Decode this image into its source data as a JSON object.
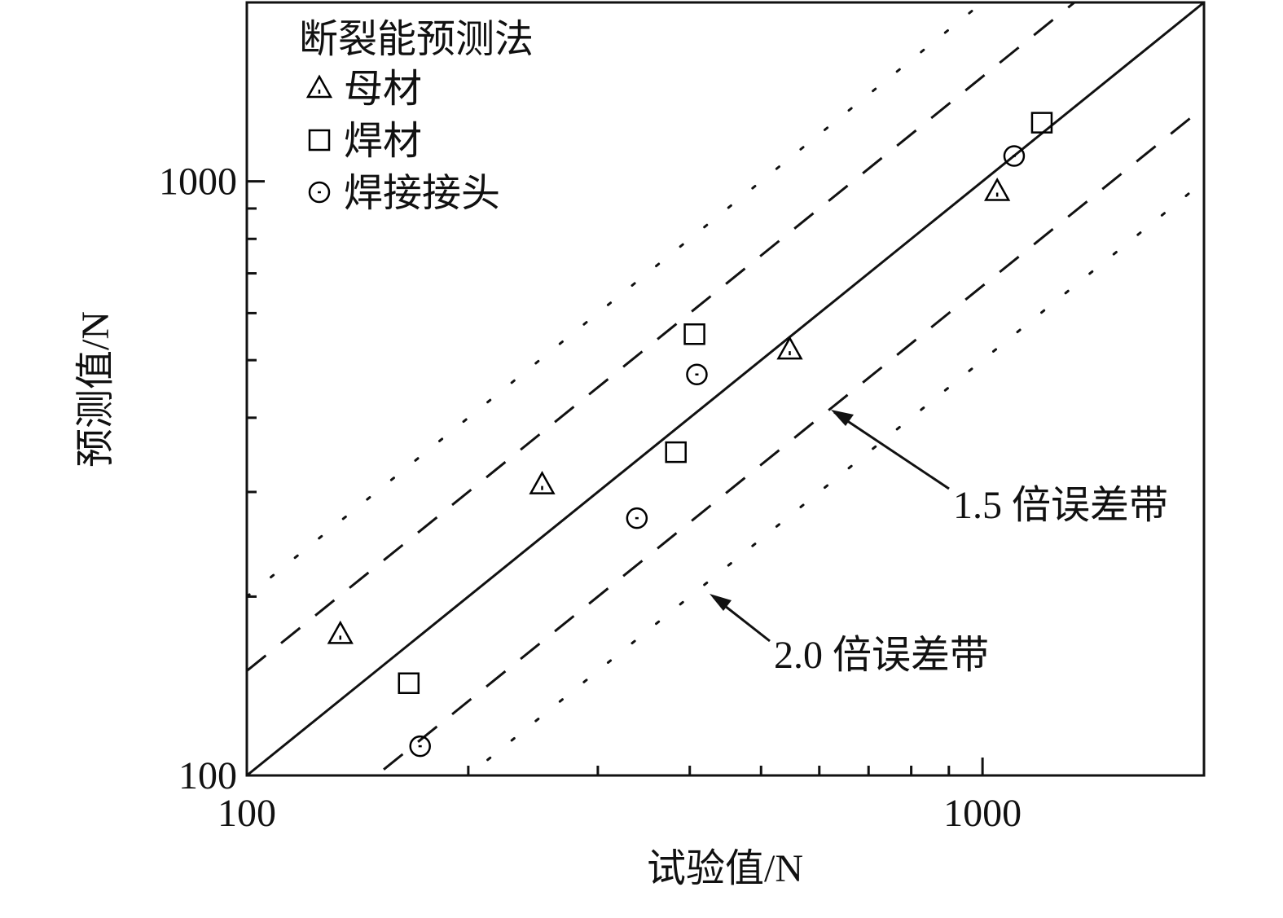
{
  "chart_data": {
    "type": "scatter",
    "x_label": "试验值/N",
    "y_label": "预测值/N",
    "legend_title": "断裂能预测法",
    "legend": "upper left",
    "xscale": "log",
    "yscale": "log",
    "xlim": [
      100,
      2000
    ],
    "ylim": [
      100,
      2000
    ],
    "xticks": [
      100,
      1000
    ],
    "yticks": [
      100,
      1000
    ],
    "xminor_ticks": [
      200,
      300,
      400,
      500,
      600,
      700,
      800,
      900
    ],
    "yminor_ticks": [
      200,
      300,
      400,
      500,
      600,
      700,
      800,
      900
    ],
    "series": [
      {
        "name": "母材",
        "marker": "triangle",
        "color": "#000000",
        "x": [
          134,
          252,
          547,
          1047
        ],
        "values": [
          173,
          309,
          521,
          963
        ]
      },
      {
        "name": "焊材",
        "marker": "square",
        "color": "#000000",
        "x": [
          166,
          383,
          406,
          1204
        ],
        "values": [
          143,
          350,
          553,
          1255
        ]
      },
      {
        "name": "焊接接头",
        "marker": "circle",
        "color": "#000000",
        "x": [
          172,
          339,
          409,
          1104
        ],
        "values": [
          112,
          271,
          473,
          1103
        ]
      }
    ],
    "reference_lines": [
      {
        "factor": 1,
        "style": "solid"
      },
      {
        "factor": 1.5,
        "style": "dashed",
        "label": "1.5 倍误差带"
      },
      {
        "factor": 2.0,
        "style": "dotted",
        "label": "2.0 倍误差带"
      }
    ]
  }
}
